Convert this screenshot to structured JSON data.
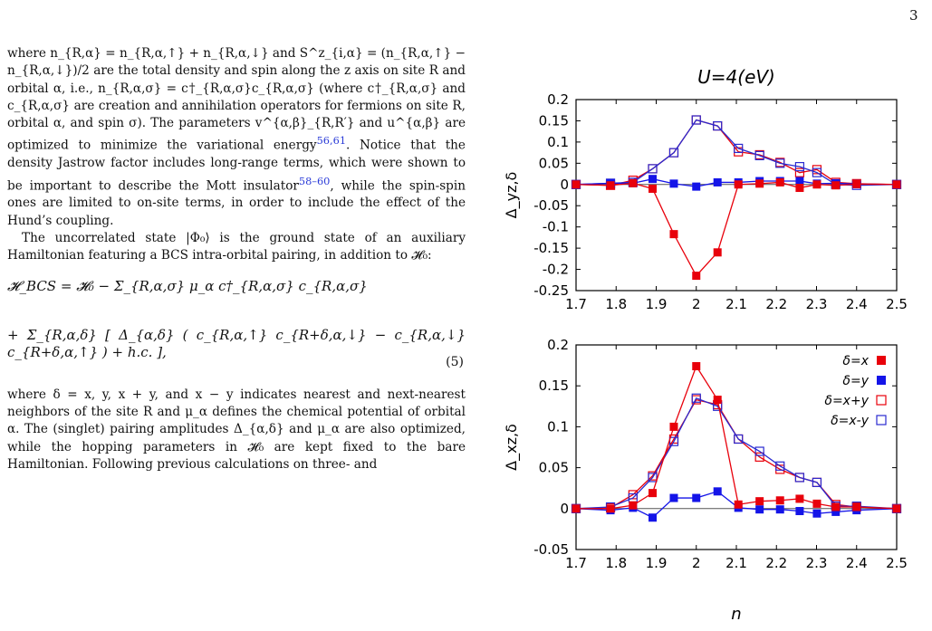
{
  "page": {
    "number": "3"
  },
  "text": {
    "para1": [
      "where n_{R,α} = n_{R,α,↑} + n_{R,α,↓} and S^z_{i,α} = (n_{R,α,↑} − n_{R,α,↓})/2 are the total density and spin along the z axis on site R and orbital α, i.e., n_{R,α,σ} = c†_{R,α,σ}c_{R,α,σ} (where c†_{R,α,σ} and c_{R,α,σ} are creation and annihilation operators for fermions on site R, orbital α, and spin σ). The parameters v^{α,β}_{R,R′} and u^{α,β} are optimized to minimize the variational energy",
      "56,61",
      ". Notice that the density Jastrow factor includes long-range terms, which were shown to be important to describe the Mott insulator",
      "58–60",
      ", while the spin-spin ones are limited to on-site terms, in order to include the effect of the Hund’s coupling."
    ],
    "para2": "The uncorrelated state |Φ₀⟩ is the ground state of an auxiliary Hamiltonian featuring a BCS intra-orbital pairing, in addition to 𝓗₀:",
    "eq_line1": "𝓗_BCS = 𝓗₀ − Σ_{R,α,σ} μ_α c†_{R,α,σ} c_{R,α,σ}",
    "eq_line2": "+ Σ_{R,α,δ} [ Δ_{α,δ} ( c_{R,α,↑} c_{R+δ,α,↓} − c_{R,α,↓} c_{R+δ,α,↑} ) + h.c. ],",
    "eq_number": "(5)",
    "para3": "where δ = x, y, x + y, and x − y indicates nearest and next-nearest neighbors of the site R and μ_α defines the chemical potential of orbital α. The (singlet) pairing amplitudes Δ_{α,δ} and μ_α are also optimized, while the hopping parameters in 𝓗₀ are kept fixed to the bare Hamiltonian. Following previous calculations on three- and"
  },
  "figure": {
    "title": "U=4(eV)",
    "xlabel": "n",
    "colors": {
      "red": "#e8000b",
      "blue": "#1414e8",
      "purple": "#8a1ccc",
      "zero_line": "#555555"
    }
  },
  "chart_data": [
    {
      "type": "line",
      "title": "U=4(eV)",
      "xlabel": "",
      "ylabel": "Δ_yz,δ",
      "xlim": [
        1.7,
        2.5
      ],
      "ylim": [
        -0.25,
        0.2
      ],
      "xticks": [
        "1.7",
        "1.8",
        "1.9",
        "2",
        "2.1",
        "2.2",
        "2.3",
        "2.4",
        "2.5"
      ],
      "yticks": [
        "0.2",
        "0.15",
        "0.1",
        "0.05",
        "0",
        "-0.05",
        "-0.1",
        "-0.15",
        "-0.2",
        "-0.25"
      ],
      "x": [
        1.7,
        1.786,
        1.842,
        1.891,
        1.944,
        2.0,
        2.053,
        2.105,
        2.158,
        2.209,
        2.258,
        2.301,
        2.348,
        2.4,
        2.5
      ],
      "series": [
        {
          "name": "δ=x",
          "color": "#e8000b",
          "marker": "filled",
          "values": [
            0.0,
            -0.002,
            0.003,
            -0.01,
            -0.117,
            -0.215,
            -0.16,
            0.0,
            0.002,
            0.005,
            -0.008,
            0.0,
            -0.002,
            0.001,
            0.0
          ]
        },
        {
          "name": "δ=y",
          "color": "#1414e8",
          "marker": "filled",
          "values": [
            0.0,
            0.003,
            0.003,
            0.013,
            0.002,
            -0.005,
            0.005,
            0.005,
            0.008,
            0.008,
            0.008,
            0.002,
            0.003,
            0.001,
            0.0
          ]
        },
        {
          "name": "δ=x+y",
          "color": "#e8000b",
          "marker": "open",
          "values": [
            0.0,
            -0.002,
            0.01,
            0.037,
            0.075,
            0.152,
            0.138,
            0.077,
            0.07,
            0.052,
            0.028,
            0.035,
            0.005,
            0.002,
            0.0
          ]
        },
        {
          "name": "δ=x-y",
          "color": "#2a2ad0",
          "marker": "open",
          "values": [
            0.0,
            0.003,
            0.005,
            0.037,
            0.075,
            0.152,
            0.138,
            0.085,
            0.068,
            0.05,
            0.042,
            0.028,
            0.0,
            -0.002,
            0.0
          ]
        }
      ]
    },
    {
      "type": "line",
      "title": "",
      "xlabel": "n",
      "ylabel": "Δ_xz,δ",
      "xlim": [
        1.7,
        2.5
      ],
      "ylim": [
        -0.05,
        0.2
      ],
      "xticks": [
        "1.7",
        "1.8",
        "1.9",
        "2",
        "2.1",
        "2.2",
        "2.3",
        "2.4",
        "2.5"
      ],
      "yticks": [
        "0.2",
        "0.15",
        "0.1",
        "0.05",
        "0",
        "-0.05"
      ],
      "legend_position": "top-right",
      "x": [
        1.7,
        1.786,
        1.842,
        1.891,
        1.944,
        2.0,
        2.053,
        2.105,
        2.158,
        2.209,
        2.258,
        2.301,
        2.348,
        2.4,
        2.5
      ],
      "series": [
        {
          "name": "δ=x",
          "color": "#e8000b",
          "marker": "filled",
          "values": [
            0.0,
            0.0,
            0.004,
            0.019,
            0.1,
            0.174,
            0.133,
            0.005,
            0.009,
            0.01,
            0.012,
            0.006,
            0.002,
            0.002,
            0.0
          ]
        },
        {
          "name": "δ=y",
          "color": "#1414e8",
          "marker": "filled",
          "values": [
            0.0,
            -0.002,
            0.001,
            -0.011,
            0.013,
            0.013,
            0.021,
            0.001,
            -0.001,
            -0.001,
            -0.003,
            -0.006,
            -0.004,
            -0.002,
            0.0
          ]
        },
        {
          "name": "δ=x+y",
          "color": "#e8000b",
          "marker": "open",
          "values": [
            0.0,
            0.001,
            0.017,
            0.04,
            0.085,
            0.133,
            0.127,
            0.085,
            0.063,
            0.048,
            0.038,
            0.032,
            0.005,
            0.002,
            0.0
          ]
        },
        {
          "name": "δ=x-y",
          "color": "#2a2ad0",
          "marker": "open",
          "values": [
            0.0,
            0.002,
            0.013,
            0.038,
            0.082,
            0.135,
            0.125,
            0.085,
            0.07,
            0.052,
            0.038,
            0.032,
            0.003,
            0.003,
            0.0
          ]
        }
      ]
    }
  ]
}
